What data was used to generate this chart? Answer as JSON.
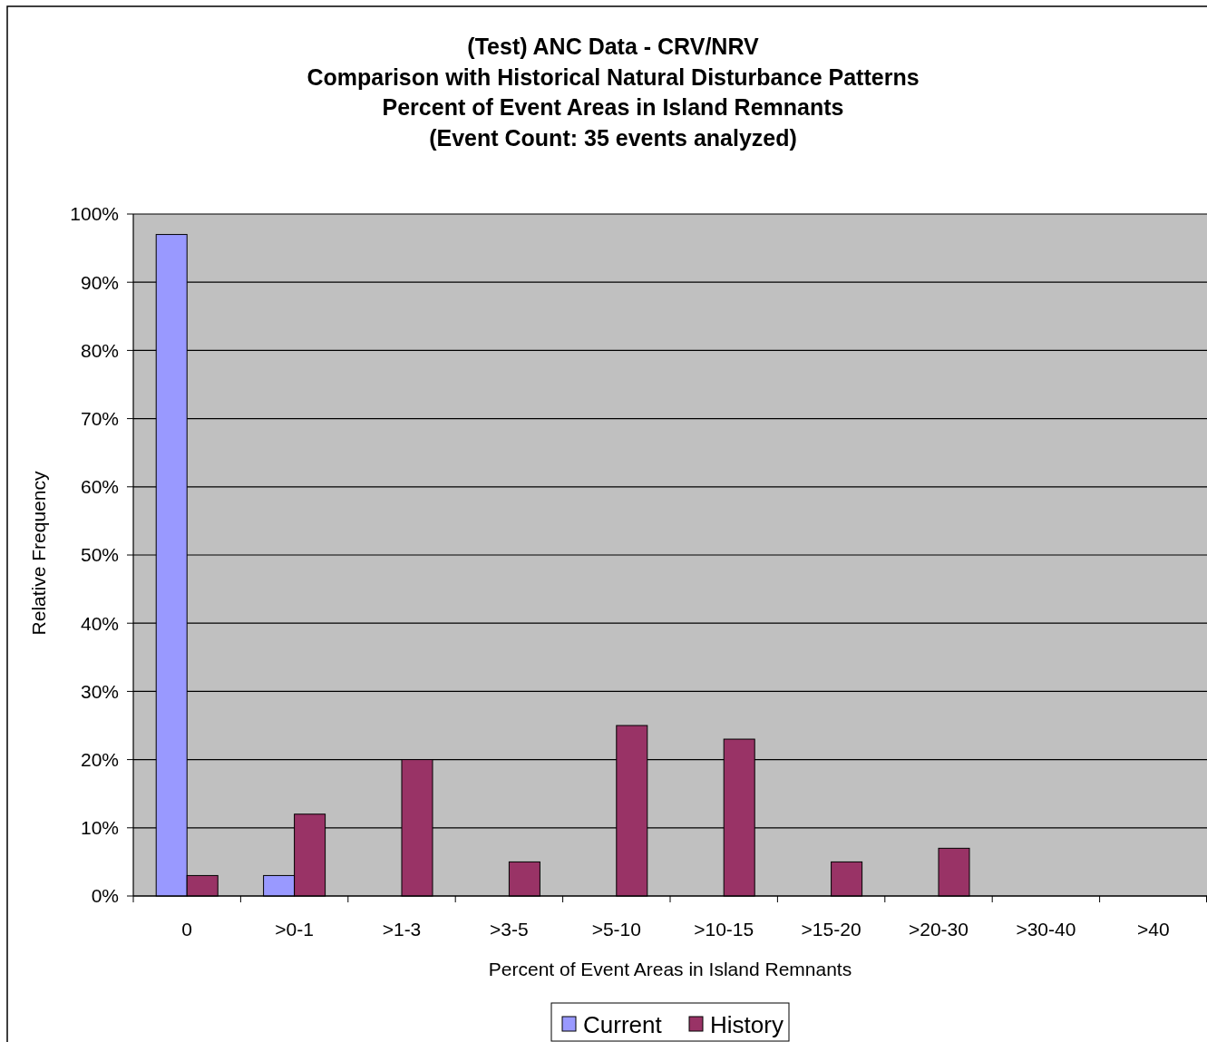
{
  "chart_data": {
    "type": "bar",
    "title": "(Test) ANC Data - CRV/NRV\nComparison with Historical Natural Disturbance Patterns\nPercent of Event Areas in Island Remnants\n(Event Count: 35 events analyzed)",
    "xlabel": "Percent of Event Areas in Island Remnants",
    "ylabel": "Relative Frequency",
    "categories": [
      "0",
      ">0-1",
      ">1-3",
      ">3-5",
      ">5-10",
      ">10-15",
      ">15-20",
      ">20-30",
      ">30-40",
      ">40"
    ],
    "series": [
      {
        "name": "Current",
        "color": "#9999ff",
        "values": [
          97,
          3,
          0,
          0,
          0,
          0,
          0,
          0,
          0,
          0
        ]
      },
      {
        "name": "History",
        "color": "#993366",
        "values": [
          3,
          12,
          20,
          5,
          25,
          23,
          5,
          7,
          0,
          0
        ]
      }
    ],
    "ylim": [
      0,
      100
    ],
    "yticks": [
      {
        "value": 0,
        "label": "0%"
      },
      {
        "value": 10,
        "label": "10%"
      },
      {
        "value": 20,
        "label": "20%"
      },
      {
        "value": 30,
        "label": "30%"
      },
      {
        "value": 40,
        "label": "40%"
      },
      {
        "value": 50,
        "label": "50%"
      },
      {
        "value": 60,
        "label": "60%"
      },
      {
        "value": 70,
        "label": "70%"
      },
      {
        "value": 80,
        "label": "80%"
      },
      {
        "value": 90,
        "label": "90%"
      },
      {
        "value": 100,
        "label": "100%"
      }
    ],
    "grid": "y",
    "legend": "bottom"
  }
}
